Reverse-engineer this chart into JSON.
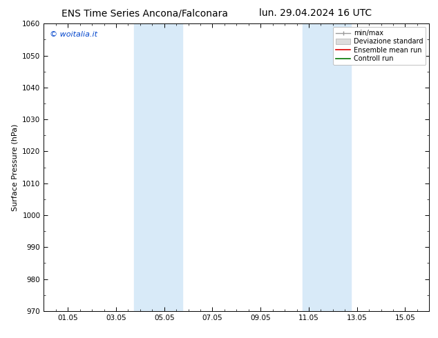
{
  "title_left": "ENS Time Series Ancona/Falconara",
  "title_right": "lun. 29.04.2024 16 UTC",
  "ylabel": "Surface Pressure (hPa)",
  "watermark": "© woitalia.it",
  "ylim": [
    970,
    1060
  ],
  "yticks": [
    970,
    980,
    990,
    1000,
    1010,
    1020,
    1030,
    1040,
    1050,
    1060
  ],
  "xtick_labels": [
    "01.05",
    "03.05",
    "05.05",
    "07.05",
    "09.05",
    "11.05",
    "13.05",
    "15.05"
  ],
  "xtick_positions": [
    2,
    6,
    10,
    14,
    18,
    22,
    26,
    30
  ],
  "xmin": 0,
  "xmax": 32,
  "shaded_bands": [
    {
      "xmin": 7.5,
      "xmax": 11.5
    },
    {
      "xmin": 21.5,
      "xmax": 25.5
    }
  ],
  "shade_color": "#d8eaf8",
  "shade_alpha": 1.0,
  "legend_labels": [
    "min/max",
    "Deviazione standard",
    "Ensemble mean run",
    "Controll run"
  ],
  "legend_colors": [
    "#aaaaaa",
    "#cccccc",
    "#ff0000",
    "#00aa00"
  ],
  "bg_color": "#ffffff",
  "title_fontsize": 10,
  "axis_fontsize": 8,
  "tick_fontsize": 7.5
}
